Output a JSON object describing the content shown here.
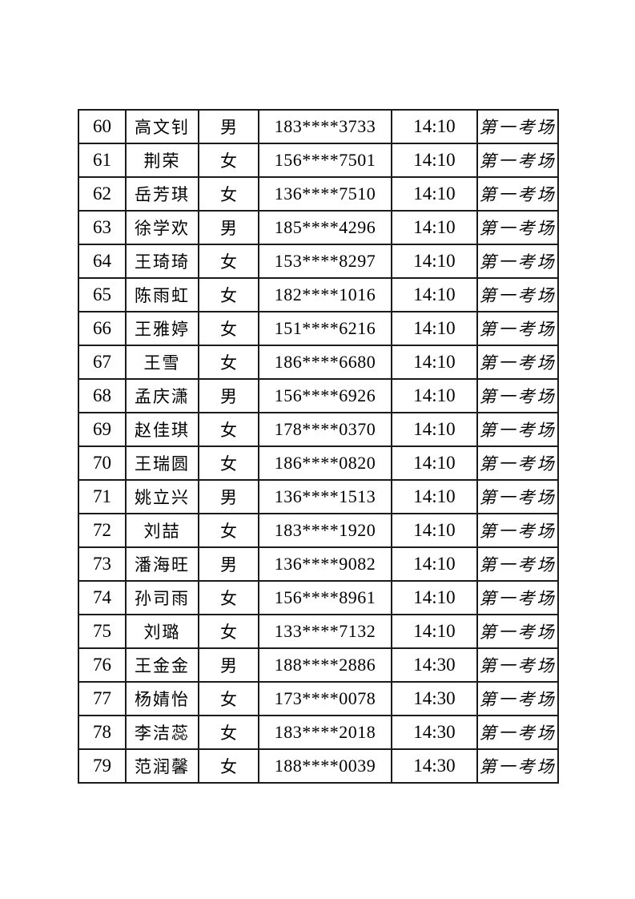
{
  "colors": {
    "background": "#ffffff",
    "border": "#1b1b1b",
    "text": "#000000"
  },
  "table": {
    "rows": [
      {
        "no": "60",
        "name": "高文钊",
        "gender": "男",
        "phone": "183****3733",
        "time": "14:10",
        "room": "第一考场"
      },
      {
        "no": "61",
        "name": "荆荣",
        "gender": "女",
        "phone": "156****7501",
        "time": "14:10",
        "room": "第一考场"
      },
      {
        "no": "62",
        "name": "岳芳琪",
        "gender": "女",
        "phone": "136****7510",
        "time": "14:10",
        "room": "第一考场"
      },
      {
        "no": "63",
        "name": "徐学欢",
        "gender": "男",
        "phone": "185****4296",
        "time": "14:10",
        "room": "第一考场"
      },
      {
        "no": "64",
        "name": "王琦琦",
        "gender": "女",
        "phone": "153****8297",
        "time": "14:10",
        "room": "第一考场"
      },
      {
        "no": "65",
        "name": "陈雨虹",
        "gender": "女",
        "phone": "182****1016",
        "time": "14:10",
        "room": "第一考场"
      },
      {
        "no": "66",
        "name": "王雅婷",
        "gender": "女",
        "phone": "151****6216",
        "time": "14:10",
        "room": "第一考场"
      },
      {
        "no": "67",
        "name": "王雪",
        "gender": "女",
        "phone": "186****6680",
        "time": "14:10",
        "room": "第一考场"
      },
      {
        "no": "68",
        "name": "孟庆潇",
        "gender": "男",
        "phone": "156****6926",
        "time": "14:10",
        "room": "第一考场"
      },
      {
        "no": "69",
        "name": "赵佳琪",
        "gender": "女",
        "phone": "178****0370",
        "time": "14:10",
        "room": "第一考场"
      },
      {
        "no": "70",
        "name": "王瑞圆",
        "gender": "女",
        "phone": "186****0820",
        "time": "14:10",
        "room": "第一考场"
      },
      {
        "no": "71",
        "name": "姚立兴",
        "gender": "男",
        "phone": "136****1513",
        "time": "14:10",
        "room": "第一考场"
      },
      {
        "no": "72",
        "name": "刘喆",
        "gender": "女",
        "phone": "183****1920",
        "time": "14:10",
        "room": "第一考场"
      },
      {
        "no": "73",
        "name": "潘海旺",
        "gender": "男",
        "phone": "136****9082",
        "time": "14:10",
        "room": "第一考场"
      },
      {
        "no": "74",
        "name": "孙司雨",
        "gender": "女",
        "phone": "156****8961",
        "time": "14:10",
        "room": "第一考场"
      },
      {
        "no": "75",
        "name": "刘璐",
        "gender": "女",
        "phone": "133****7132",
        "time": "14:10",
        "room": "第一考场"
      },
      {
        "no": "76",
        "name": "王金金",
        "gender": "男",
        "phone": "188****2886",
        "time": "14:30",
        "room": "第一考场"
      },
      {
        "no": "77",
        "name": "杨婧怡",
        "gender": "女",
        "phone": "173****0078",
        "time": "14:30",
        "room": "第一考场"
      },
      {
        "no": "78",
        "name": "李洁蕊",
        "gender": "女",
        "phone": "183****2018",
        "time": "14:30",
        "room": "第一考场"
      },
      {
        "no": "79",
        "name": "范润馨",
        "gender": "女",
        "phone": "188****0039",
        "time": "14:30",
        "room": "第一考场"
      }
    ]
  }
}
